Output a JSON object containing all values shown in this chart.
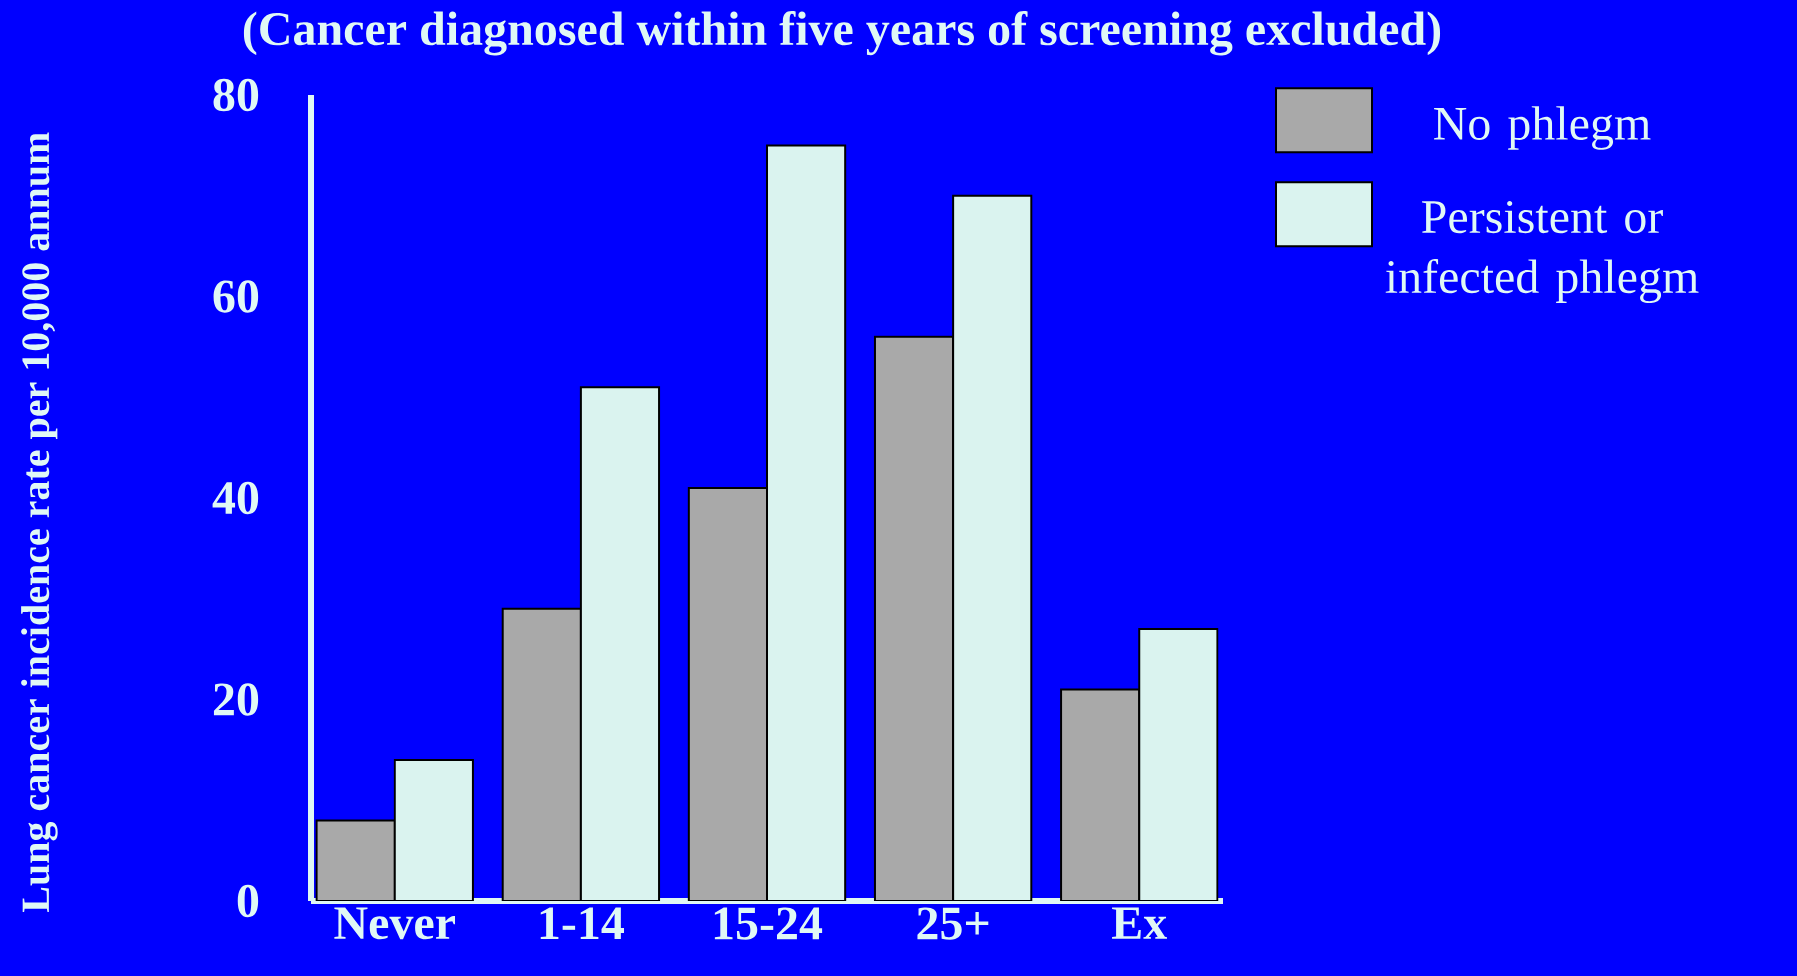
{
  "chart_data": {
    "type": "bar",
    "title": "(Cancer diagnosed within five years of screening excluded)",
    "ylabel": "Lung cancer incidence rate per 10,000 annum",
    "categories": [
      "Never",
      "1-14",
      "15-24",
      "25+",
      "Ex"
    ],
    "series": [
      {
        "name": "No phlegm",
        "color": "#a9a9a9",
        "values": [
          8,
          29,
          41,
          56,
          21
        ]
      },
      {
        "name": "Persistent  or infected phlegm",
        "color": "#daf3ef",
        "values": [
          14,
          51,
          75,
          70,
          27
        ]
      }
    ],
    "ylim": [
      0,
      80
    ],
    "yticks": [
      0,
      20,
      40,
      60,
      80
    ],
    "grid": false,
    "legend": "top right"
  }
}
